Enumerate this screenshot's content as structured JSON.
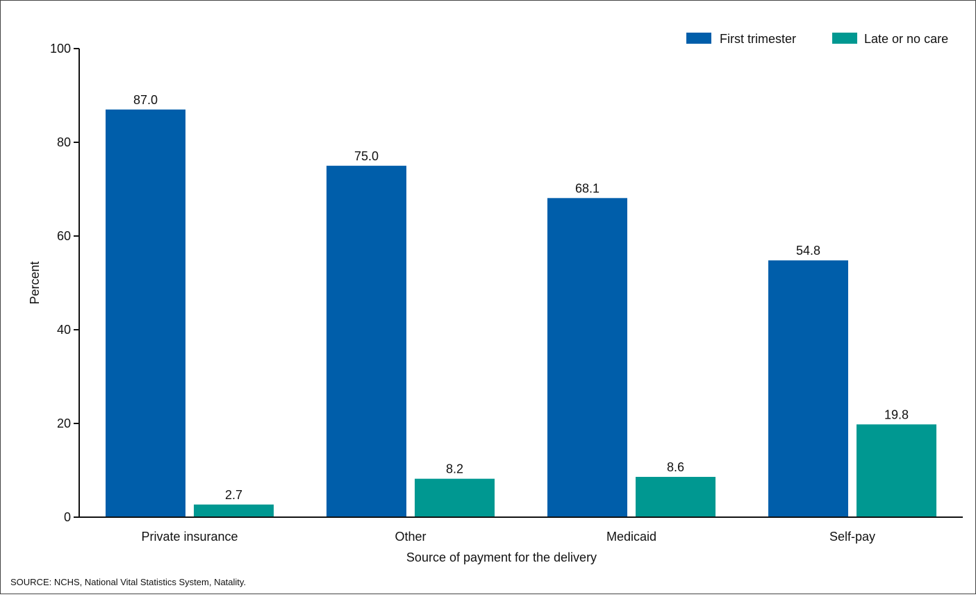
{
  "chart_data": {
    "type": "bar",
    "title": "",
    "xlabel": "Source of payment for the delivery",
    "ylabel": "Percent",
    "ylim": [
      0,
      100
    ],
    "yticks": [
      0,
      20,
      40,
      60,
      80,
      100
    ],
    "grid": false,
    "legend_position": "top-right",
    "categories": [
      "Private insurance",
      "Other",
      "Medicaid",
      "Self-pay"
    ],
    "series": [
      {
        "name": "First trimester",
        "color": "#005eaa",
        "values": [
          87.0,
          75.0,
          68.1,
          54.8
        ],
        "labels": [
          "87.0",
          "75.0",
          "68.1",
          "54.8"
        ]
      },
      {
        "name": "Late or no care",
        "color": "#009891",
        "values": [
          2.7,
          8.2,
          8.6,
          19.8
        ],
        "labels": [
          "2.7",
          "8.2",
          "8.6",
          "19.8"
        ]
      }
    ]
  },
  "source_note": "SOURCE: NCHS, National Vital Statistics System, Natality."
}
